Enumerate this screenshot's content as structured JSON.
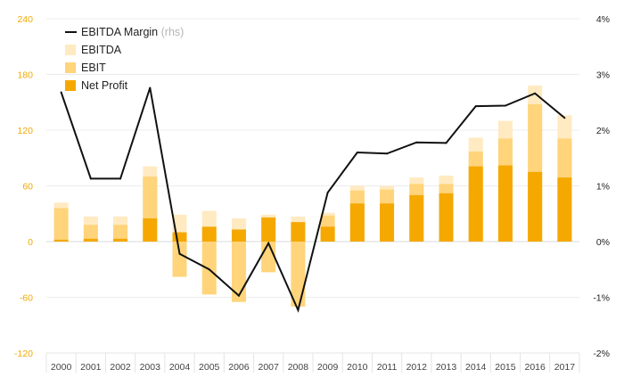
{
  "chart_data": {
    "type": "bar",
    "categories": [
      "2000",
      "2001",
      "2002",
      "2003",
      "2004",
      "2005",
      "2006",
      "2007",
      "2008",
      "2009",
      "2010",
      "2011",
      "2012",
      "2013",
      "2014",
      "2015",
      "2016",
      "2017"
    ],
    "series": [
      {
        "name": "EBITDA",
        "values": [
          42,
          27,
          27,
          81,
          29,
          33,
          25,
          29,
          27,
          31,
          60,
          60,
          69,
          71,
          112,
          130,
          168,
          136
        ],
        "color": "#ffeac2"
      },
      {
        "name": "EBIT",
        "values": [
          36,
          18,
          18,
          70,
          -38,
          -57,
          -65,
          -33,
          -70,
          28,
          55,
          56,
          62,
          62,
          97,
          111,
          148,
          111
        ],
        "color": "#ffd47a"
      },
      {
        "name": "Net Profit",
        "values": [
          2,
          3,
          3,
          25,
          10,
          16,
          13,
          26,
          21,
          16,
          41,
          41,
          50,
          52,
          81,
          82,
          75,
          69
        ],
        "color": "#f5a800"
      }
    ],
    "line_series": {
      "name": "EBITDA Margin",
      "name_suffix": "(rhs)",
      "values": [
        2.68,
        1.13,
        1.13,
        2.76,
        -0.22,
        -0.5,
        -0.97,
        -0.03,
        -1.23,
        0.88,
        1.6,
        1.58,
        1.78,
        1.77,
        2.43,
        2.44,
        2.66,
        2.22
      ],
      "color": "#111111"
    },
    "y_left": {
      "ticks": [
        240,
        180,
        120,
        60,
        0,
        -60,
        -120
      ],
      "ylim": [
        -120,
        240
      ]
    },
    "y_right": {
      "ticks": [
        "4%",
        "3%",
        "2%",
        "1%",
        "0%",
        "-1%",
        "-2%"
      ],
      "ylim": [
        -2,
        4
      ]
    },
    "legend_position": "top-left",
    "grid": true,
    "title": "",
    "xlabel": "",
    "ylabel": ""
  }
}
